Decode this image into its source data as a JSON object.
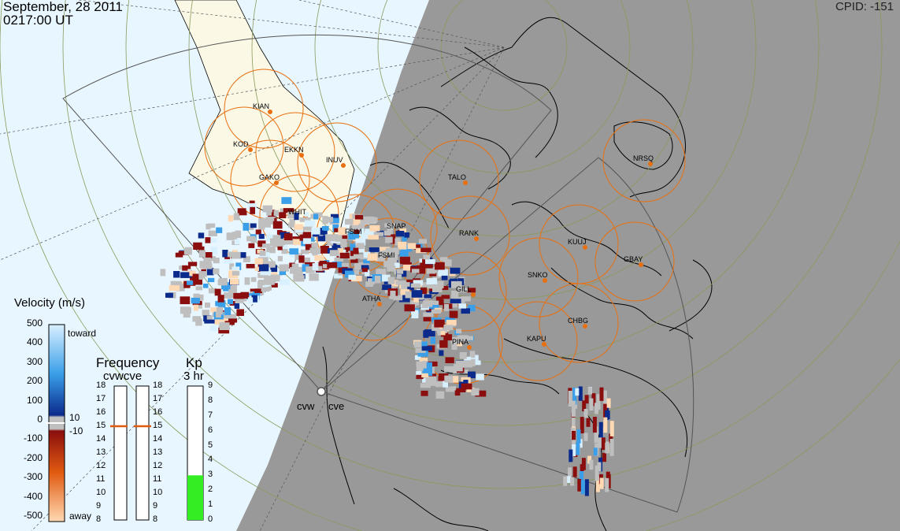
{
  "header": {
    "date": "September, 28 2011",
    "time": "0217:00 UT",
    "cpid_label": "CPID:",
    "cpid_value": "-151"
  },
  "radar_sites": [
    {
      "name": "KIAN"
    },
    {
      "name": "KOD"
    },
    {
      "name": "EKKN"
    },
    {
      "name": "INUV"
    },
    {
      "name": "GAKO"
    },
    {
      "name": "WHIT"
    },
    {
      "name": "FSIM"
    },
    {
      "name": "SNAP"
    },
    {
      "name": "FSMI"
    },
    {
      "name": "TALO"
    },
    {
      "name": "RANK"
    },
    {
      "name": "KUUJ"
    },
    {
      "name": "GBAY"
    },
    {
      "name": "SNKO"
    },
    {
      "name": "GILL"
    },
    {
      "name": "ATHA"
    },
    {
      "name": "CHBG"
    },
    {
      "name": "KAPU"
    },
    {
      "name": "PINA"
    },
    {
      "name": "NRSQ"
    }
  ],
  "radars": {
    "west": "cvw",
    "east": "cve"
  },
  "velocity_scale": {
    "title": "Velocity (m/s)",
    "ticks": [
      "500",
      "400",
      "300",
      "200",
      "100",
      "0",
      "-100",
      "-200",
      "-300",
      "-400",
      "-500"
    ],
    "toward_label": "toward",
    "away_label": "away",
    "pos_small": "10",
    "neg_small": "-10",
    "colors": {
      "toward_light": "#d9f0ff",
      "toward_mid": "#3a9fe8",
      "toward_dark": "#0a2a8c",
      "zero": "#bfbfbf",
      "away_dark": "#8a0e0e",
      "away_mid": "#e05a10",
      "away_light": "#ffd9b3"
    }
  },
  "frequency": {
    "title": "Frequency",
    "subtitle": "cvwcve",
    "ticks": [
      "18",
      "17",
      "16",
      "15",
      "14",
      "13",
      "12",
      "11",
      "10",
      "9",
      "8"
    ],
    "cvw_value": 15,
    "cve_value": 15,
    "marker_color": "#e05a10"
  },
  "kp": {
    "title": "Kp",
    "subtitle": "3 hr",
    "ticks": [
      "9",
      "8",
      "7",
      "6",
      "5",
      "4",
      "3",
      "2",
      "1",
      "0"
    ],
    "value": 3,
    "fill_color": "#33ee22"
  },
  "colors": {
    "sky": "#e8f6ff",
    "night": "#999999",
    "land": "#fbf8e6",
    "fov_circle": "#e87010",
    "grid": "#8a9a5a"
  }
}
